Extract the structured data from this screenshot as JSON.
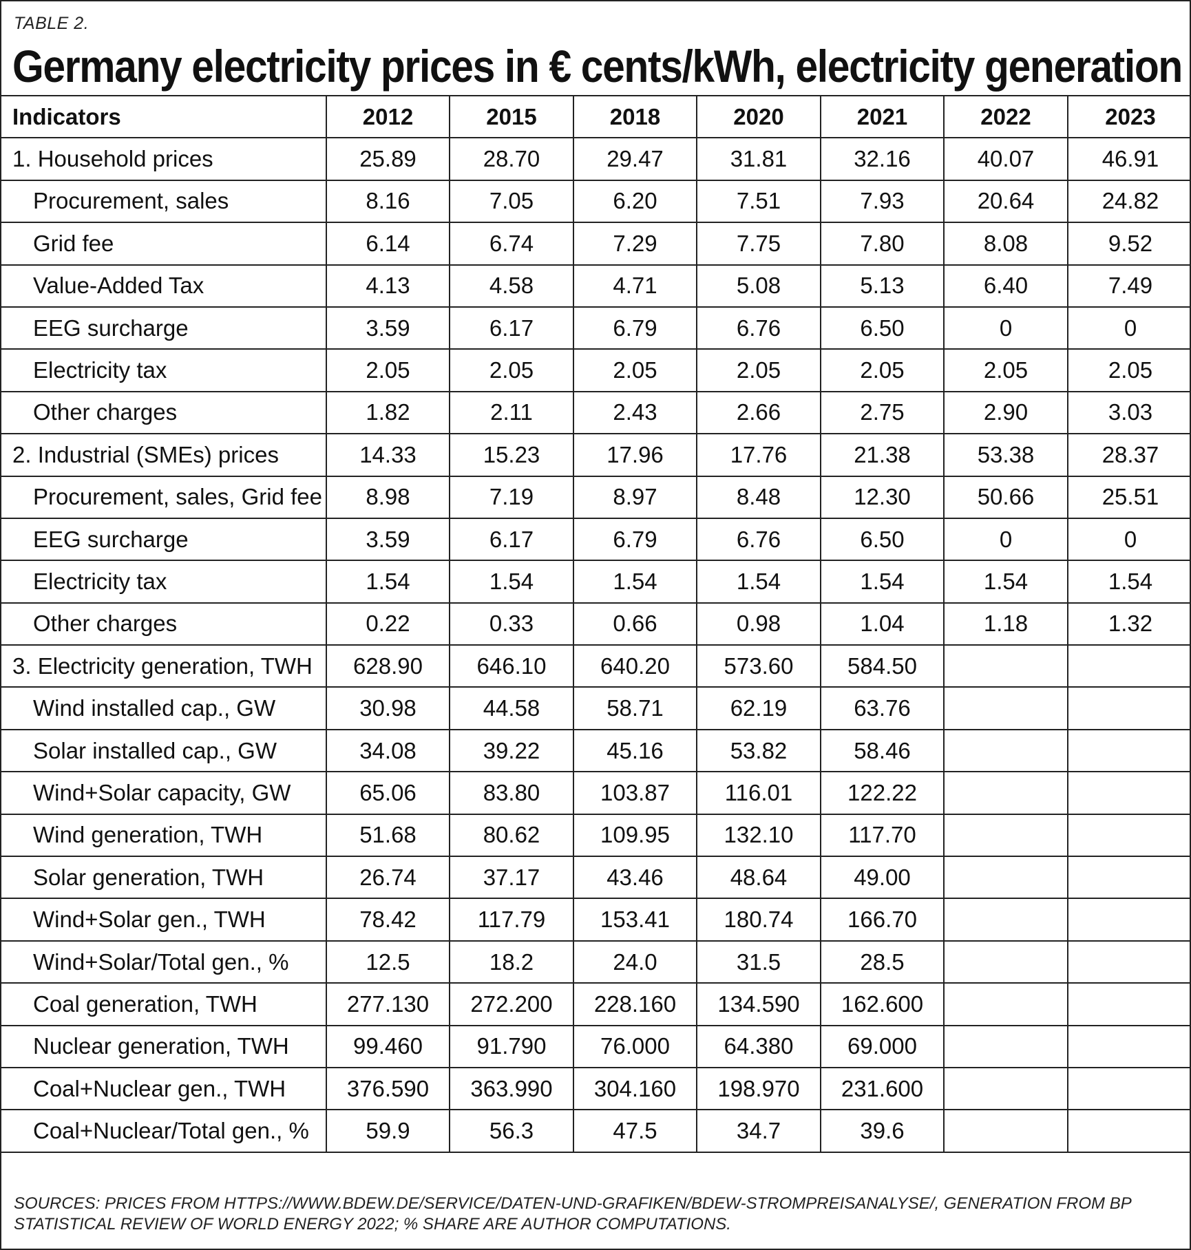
{
  "label": "TABLE 2.",
  "title": "Germany electricity prices in € cents/kWh, electricity generation",
  "header": {
    "indicators": "Indicators",
    "years": [
      "2012",
      "2015",
      "2018",
      "2020",
      "2021",
      "2022",
      "2023"
    ]
  },
  "rows": [
    {
      "label": "1. Household prices",
      "sub": false,
      "values": [
        "25.89",
        "28.70",
        "29.47",
        "31.81",
        "32.16",
        "40.07",
        "46.91"
      ]
    },
    {
      "label": "Procurement, sales",
      "sub": true,
      "values": [
        "8.16",
        "7.05",
        "6.20",
        "7.51",
        "7.93",
        "20.64",
        "24.82"
      ]
    },
    {
      "label": "Grid fee",
      "sub": true,
      "values": [
        "6.14",
        "6.74",
        "7.29",
        "7.75",
        "7.80",
        "8.08",
        "9.52"
      ]
    },
    {
      "label": "Value-Added Tax",
      "sub": true,
      "values": [
        "4.13",
        "4.58",
        "4.71",
        "5.08",
        "5.13",
        "6.40",
        "7.49"
      ]
    },
    {
      "label": "EEG surcharge",
      "sub": true,
      "values": [
        "3.59",
        "6.17",
        "6.79",
        "6.76",
        "6.50",
        "0",
        "0"
      ]
    },
    {
      "label": "Electricity tax",
      "sub": true,
      "values": [
        "2.05",
        "2.05",
        "2.05",
        "2.05",
        "2.05",
        "2.05",
        "2.05"
      ]
    },
    {
      "label": "Other charges",
      "sub": true,
      "values": [
        "1.82",
        "2.11",
        "2.43",
        "2.66",
        "2.75",
        "2.90",
        "3.03"
      ]
    },
    {
      "label": "2. Industrial (SMEs) prices",
      "sub": false,
      "values": [
        "14.33",
        "15.23",
        "17.96",
        "17.76",
        "21.38",
        "53.38",
        "28.37"
      ]
    },
    {
      "label": "Procurement, sales, Grid fee",
      "sub": true,
      "values": [
        "8.98",
        "7.19",
        "8.97",
        "8.48",
        "12.30",
        "50.66",
        "25.51"
      ]
    },
    {
      "label": "EEG surcharge",
      "sub": true,
      "values": [
        "3.59",
        "6.17",
        "6.79",
        "6.76",
        "6.50",
        "0",
        "0"
      ]
    },
    {
      "label": "Electricity tax",
      "sub": true,
      "values": [
        "1.54",
        "1.54",
        "1.54",
        "1.54",
        "1.54",
        "1.54",
        "1.54"
      ]
    },
    {
      "label": "Other charges",
      "sub": true,
      "values": [
        "0.22",
        "0.33",
        "0.66",
        "0.98",
        "1.04",
        "1.18",
        "1.32"
      ]
    },
    {
      "label": "3. Electricity generation, TWH",
      "sub": false,
      "values": [
        "628.90",
        "646.10",
        "640.20",
        "573.60",
        "584.50",
        "",
        ""
      ]
    },
    {
      "label": "Wind installed cap., GW",
      "sub": true,
      "values": [
        "30.98",
        "44.58",
        "58.71",
        "62.19",
        "63.76",
        "",
        ""
      ]
    },
    {
      "label": "Solar installed cap., GW",
      "sub": true,
      "values": [
        "34.08",
        "39.22",
        "45.16",
        "53.82",
        "58.46",
        "",
        ""
      ]
    },
    {
      "label": "Wind+Solar capacity, GW",
      "sub": true,
      "values": [
        "65.06",
        "83.80",
        "103.87",
        "116.01",
        "122.22",
        "",
        ""
      ]
    },
    {
      "label": "Wind generation, TWH",
      "sub": true,
      "values": [
        "51.68",
        "80.62",
        "109.95",
        "132.10",
        "117.70",
        "",
        ""
      ]
    },
    {
      "label": "Solar generation, TWH",
      "sub": true,
      "values": [
        "26.74",
        "37.17",
        "43.46",
        "48.64",
        "49.00",
        "",
        ""
      ]
    },
    {
      "label": "Wind+Solar gen., TWH",
      "sub": true,
      "values": [
        "78.42",
        "117.79",
        "153.41",
        "180.74",
        "166.70",
        "",
        ""
      ]
    },
    {
      "label": "Wind+Solar/Total gen., %",
      "sub": true,
      "values": [
        "12.5",
        "18.2",
        "24.0",
        "31.5",
        "28.5",
        "",
        ""
      ]
    },
    {
      "label": "Coal generation, TWH",
      "sub": true,
      "values": [
        "277.130",
        "272.200",
        "228.160",
        "134.590",
        "162.600",
        "",
        ""
      ]
    },
    {
      "label": "Nuclear generation, TWH",
      "sub": true,
      "values": [
        "99.460",
        "91.790",
        "76.000",
        "64.380",
        "69.000",
        "",
        ""
      ]
    },
    {
      "label": "Coal+Nuclear gen., TWH",
      "sub": true,
      "values": [
        "376.590",
        "363.990",
        "304.160",
        "198.970",
        "231.600",
        "",
        ""
      ]
    },
    {
      "label": "Coal+Nuclear/Total gen., %",
      "sub": true,
      "values": [
        "59.9",
        "56.3",
        "47.5",
        "34.7",
        "39.6",
        "",
        ""
      ]
    }
  ],
  "footer": "SOURCES: PRICES FROM HTTPS://WWW.BDEW.DE/SERVICE/DATEN-UND-GRAFIKEN/BDEW-STROMPREISANALYSE/, GENERATION FROM BP STATISTICAL REVIEW OF WORLD ENERGY 2022; % SHARE ARE AUTHOR COMPUTATIONS."
}
